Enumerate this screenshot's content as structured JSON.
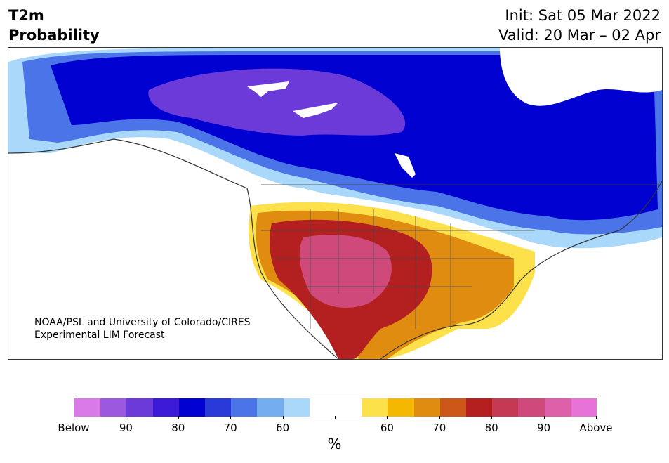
{
  "header": {
    "title_line1": "T2m",
    "title_line2": "Probability",
    "init": "Init: Sat 05 Mar 2022",
    "valid": "Valid: 20 Mar – 02 Apr"
  },
  "credit": {
    "line1": "NOAA/PSL and University of Colorado/CIRES",
    "line2": "Experimental LIM Forecast"
  },
  "colorbar": {
    "colors": [
      "#d97ae8",
      "#9b59e0",
      "#6b3ad8",
      "#3c1ad8",
      "#0000d0",
      "#2a3ad8",
      "#4a74e8",
      "#74aef0",
      "#aad8fa",
      "#ffffff",
      "#fde14a",
      "#f4b800",
      "#e08c10",
      "#cc5518",
      "#b42020",
      "#c43a55",
      "#cf4a7a",
      "#de60a8",
      "#e873d8"
    ],
    "tick_labels": [
      "Below",
      "90",
      "80",
      "70",
      "60",
      "",
      "60",
      "70",
      "80",
      "90",
      "Above"
    ],
    "unit": "%"
  }
}
